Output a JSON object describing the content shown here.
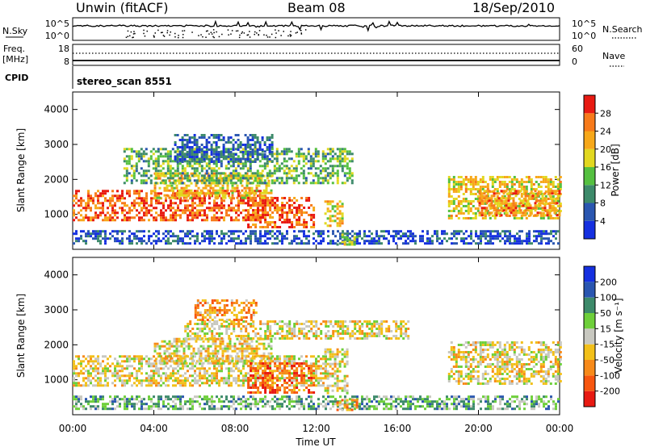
{
  "header": {
    "radar": "Unwin (fitACF)",
    "beam": "Beam 08",
    "date": "18/Sep/2010"
  },
  "nsky_panel": {
    "left_label": "N.Sky",
    "left_ticks": [
      "10^5",
      "10^0"
    ],
    "right_ticks": [
      "10^5",
      "10^0"
    ],
    "right_label": "N.Search"
  },
  "freq_panel": {
    "left_label_top": "Freq.",
    "left_label_units": "[MHz]",
    "left_ticks": [
      "18",
      "8"
    ],
    "right_ticks": [
      "60",
      "0"
    ],
    "right_label": "Nave",
    "cpid_label": "CPID",
    "cpid_value": "stereo_scan 8551"
  },
  "chart_data": [
    {
      "type": "heatmap",
      "parameter": "power",
      "ylabel": "Slant Range [km]",
      "ylim": [
        0,
        4500
      ],
      "yticks": [
        "1000",
        "2000",
        "3000",
        "4000"
      ],
      "xlim": [
        "00:00",
        "24:00"
      ],
      "xticks": [
        "00:00",
        "04:00",
        "08:00",
        "12:00",
        "16:00",
        "20:00",
        "00:00"
      ],
      "colorbar_label": "Power [dB]",
      "colorbar_ticks": [
        "4",
        "8",
        "12",
        "16",
        "20",
        "24",
        "28"
      ],
      "colorbar_colors": [
        "#1530e0",
        "#2a56b0",
        "#3d8a6a",
        "#55c040",
        "#e2d820",
        "#f7a81a",
        "#f77a1a",
        "#e81a12"
      ],
      "regions": [
        {
          "t0": 0.0,
          "t1": 9.5,
          "r0": 800,
          "r1": 1700,
          "level": 0.85
        },
        {
          "t0": 4.0,
          "t1": 9.8,
          "r0": 1500,
          "r1": 2200,
          "level": 0.65
        },
        {
          "t0": 8.6,
          "t1": 11.9,
          "r0": 600,
          "r1": 1500,
          "level": 0.85
        },
        {
          "t0": 12.4,
          "t1": 13.3,
          "r0": 700,
          "r1": 1400,
          "level": 0.6
        },
        {
          "t0": 2.5,
          "t1": 13.8,
          "r0": 1900,
          "r1": 2900,
          "level": 0.4
        },
        {
          "t0": 5.0,
          "t1": 9.8,
          "r0": 2500,
          "r1": 3300,
          "level": 0.2
        },
        {
          "t0": 18.5,
          "t1": 24.0,
          "r0": 900,
          "r1": 2100,
          "level": 0.6
        },
        {
          "t0": 20.0,
          "t1": 24.0,
          "r0": 1000,
          "r1": 1700,
          "level": 0.75
        },
        {
          "t0": 0.0,
          "t1": 24.0,
          "r0": 180,
          "r1": 550,
          "level": 0.15
        },
        {
          "t0": 13.0,
          "t1": 14.0,
          "r0": 150,
          "r1": 450,
          "level": 0.5
        }
      ]
    },
    {
      "type": "heatmap",
      "parameter": "velocity",
      "ylabel": "Slant Range [km]",
      "ylim": [
        0,
        4500
      ],
      "yticks": [
        "1000",
        "2000",
        "3000",
        "4000"
      ],
      "xlim": [
        "00:00",
        "24:00"
      ],
      "xticks": [
        "00:00",
        "04:00",
        "08:00",
        "12:00",
        "16:00",
        "20:00",
        "00:00"
      ],
      "xlabel": "Time UT",
      "colorbar_label": "Velocity [m s⁻¹]",
      "colorbar_ticks": [
        "-200",
        "-100",
        "-50",
        "-15",
        "15",
        "50",
        "100",
        "200"
      ],
      "colorbar_colors": [
        "#e81a12",
        "#f7560f",
        "#f78a1a",
        "#f2c01a",
        "#c8c8c0",
        "#6ecf3a",
        "#3d8a6a",
        "#2a56b0",
        "#1530e0"
      ],
      "regions": [
        {
          "t0": 0.0,
          "t1": 12.5,
          "r0": 800,
          "r1": 1700,
          "level": 0.45
        },
        {
          "t0": 4.0,
          "t1": 9.8,
          "r0": 1500,
          "r1": 2200,
          "level": 0.45
        },
        {
          "t0": 8.6,
          "t1": 11.9,
          "r0": 600,
          "r1": 1500,
          "level": 0.2
        },
        {
          "t0": 5.5,
          "t1": 16.5,
          "r0": 2200,
          "r1": 2700,
          "level": 0.45
        },
        {
          "t0": 6.0,
          "t1": 9.0,
          "r0": 2700,
          "r1": 3300,
          "level": 0.3
        },
        {
          "t0": 12.4,
          "t1": 13.5,
          "r0": 600,
          "r1": 1900,
          "level": 0.45
        },
        {
          "t0": 18.5,
          "t1": 24.0,
          "r0": 900,
          "r1": 2100,
          "level": 0.45
        },
        {
          "t0": 0.0,
          "t1": 24.0,
          "r0": 180,
          "r1": 550,
          "level": 0.65
        },
        {
          "t0": 13.0,
          "t1": 14.0,
          "r0": 150,
          "r1": 450,
          "level": 0.3
        }
      ]
    }
  ]
}
